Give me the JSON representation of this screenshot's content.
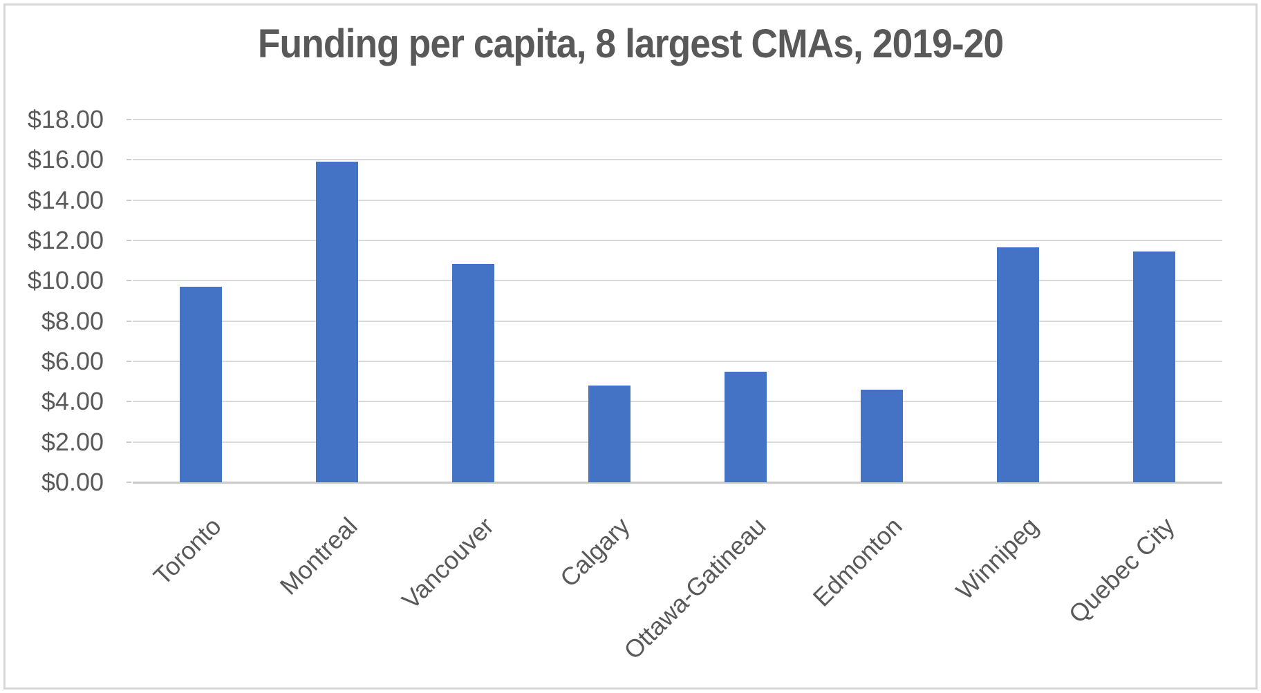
{
  "chart_data": {
    "type": "bar",
    "title": "Funding per capita, 8 largest CMAs, 2019-20",
    "categories": [
      "Toronto",
      "Montreal",
      "Vancouver",
      "Calgary",
      "Ottawa-Gatineau",
      "Edmonton",
      "Winnipeg",
      "Quebec City"
    ],
    "values": [
      9.7,
      15.9,
      10.85,
      4.8,
      5.5,
      4.6,
      11.65,
      11.45
    ],
    "xlabel": "",
    "ylabel": "",
    "ylim": [
      0,
      18
    ],
    "ytick_step": 2,
    "ytick_labels": [
      "$0.00",
      "$2.00",
      "$4.00",
      "$6.00",
      "$8.00",
      "$10.00",
      "$12.00",
      "$14.00",
      "$16.00",
      "$18.00"
    ],
    "grid": true,
    "legend": false,
    "x_label_rotation_deg": 45,
    "bar_color": "#4472C4"
  },
  "colors": {
    "bar": "#4472C4",
    "title_text": "#595959",
    "axis_text": "#595959",
    "gridline": "#D9D9D9",
    "axis_line": "#C9C9C9",
    "frame_border": "#D8D8D8",
    "background": "#FFFFFF"
  }
}
